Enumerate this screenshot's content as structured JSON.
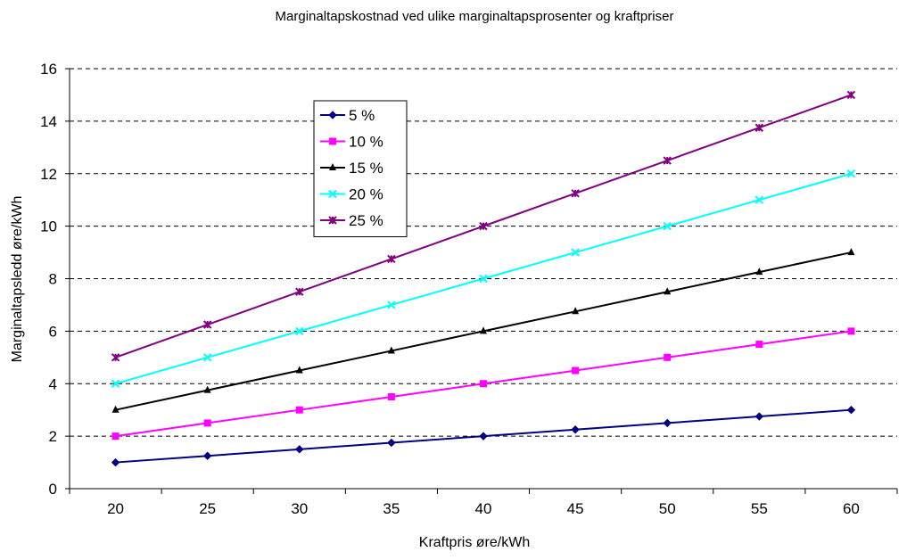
{
  "chart_data": {
    "type": "line",
    "title": "Marginaltapskostnad ved ulike marginaltapsprosenter og kraftpriser",
    "xlabel": "Kraftpris øre/kWh",
    "ylabel": "Marginaltapsledd øre/kWh",
    "categories": [
      "20",
      "25",
      "30",
      "35",
      "40",
      "45",
      "50",
      "55",
      "60"
    ],
    "ylim": [
      0,
      16
    ],
    "yticks": [
      "0",
      "2",
      "4",
      "6",
      "8",
      "10",
      "12",
      "14",
      "16"
    ],
    "grid": "horizontal dashed",
    "legend_position": "top-left inside plot",
    "series": [
      {
        "name": "5 %",
        "color": "#000080",
        "marker": "diamond",
        "values": [
          1,
          1.25,
          1.5,
          1.75,
          2,
          2.25,
          2.5,
          2.75,
          3
        ]
      },
      {
        "name": "10 %",
        "color": "#ff00ff",
        "marker": "square",
        "values": [
          2,
          2.5,
          3,
          3.5,
          4,
          4.5,
          5,
          5.5,
          6
        ]
      },
      {
        "name": "15 %",
        "color": "#000000",
        "marker": "triangle",
        "values": [
          3,
          3.75,
          4.5,
          5.25,
          6,
          6.75,
          7.5,
          8.25,
          9
        ]
      },
      {
        "name": "20 %",
        "color": "#00ffff",
        "marker": "x",
        "values": [
          4,
          5,
          6,
          7,
          8,
          9,
          10,
          11,
          12
        ]
      },
      {
        "name": "25 %",
        "color": "#800080",
        "marker": "star",
        "values": [
          5,
          6.25,
          7.5,
          8.75,
          10,
          11.25,
          12.5,
          13.75,
          15
        ]
      }
    ]
  }
}
